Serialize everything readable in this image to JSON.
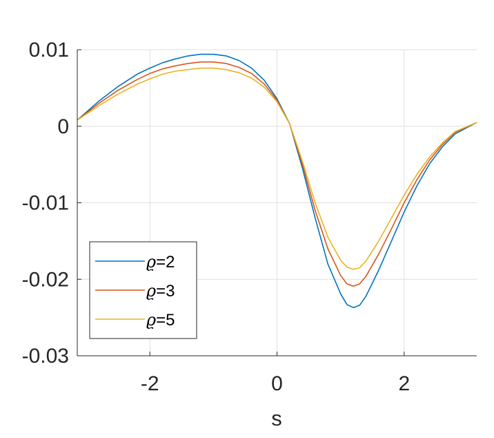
{
  "chart_data": {
    "type": "line",
    "title": "",
    "xlabel": "s",
    "ylabel": "",
    "xlim": [
      -3.1416,
      3.1416
    ],
    "ylim": [
      -0.03,
      0.01
    ],
    "xticks": [
      -2,
      0,
      2
    ],
    "xtick_labels": [
      "-2",
      "0",
      "2"
    ],
    "yticks": [
      -0.03,
      -0.02,
      -0.01,
      0,
      0.01
    ],
    "ytick_labels": [
      "-0.03",
      "-0.02",
      "-0.01",
      "0",
      "0.01"
    ],
    "grid": true,
    "legend_position": "bottom-left",
    "x": [
      -3.1416,
      -2.8,
      -2.5,
      -2.2,
      -2.0,
      -1.8,
      -1.6,
      -1.4,
      -1.2,
      -1.0,
      -0.8,
      -0.6,
      -0.4,
      -0.2,
      0.0,
      0.2,
      0.4,
      0.6,
      0.8,
      1.0,
      1.1,
      1.2,
      1.3,
      1.4,
      1.6,
      1.8,
      2.0,
      2.2,
      2.4,
      2.6,
      2.8,
      3.1416
    ],
    "series": [
      {
        "name": "ϱ=2",
        "color": "#0072BD",
        "values": [
          0.0008,
          0.0033,
          0.0052,
          0.0068,
          0.0076,
          0.0083,
          0.0088,
          0.0092,
          0.0094,
          0.0094,
          0.0092,
          0.0086,
          0.0076,
          0.006,
          0.0036,
          0.0003,
          -0.0055,
          -0.012,
          -0.018,
          -0.0219,
          -0.0233,
          -0.0237,
          -0.0234,
          -0.0222,
          -0.0188,
          -0.015,
          -0.0112,
          -0.0078,
          -0.0049,
          -0.0027,
          -0.001,
          0.0005
        ]
      },
      {
        "name": "ϱ=3",
        "color": "#D95319",
        "values": [
          0.0008,
          0.003,
          0.0047,
          0.0061,
          0.0069,
          0.0075,
          0.0079,
          0.0082,
          0.0084,
          0.0084,
          0.0082,
          0.0077,
          0.0069,
          0.0055,
          0.0034,
          0.0003,
          -0.005,
          -0.011,
          -0.016,
          -0.0195,
          -0.0206,
          -0.0209,
          -0.0206,
          -0.0196,
          -0.0167,
          -0.0134,
          -0.01,
          -0.007,
          -0.0044,
          -0.0024,
          -0.0008,
          0.0005
        ]
      },
      {
        "name": "ϱ=5",
        "color": "#EDB120",
        "values": [
          0.0008,
          0.0027,
          0.0042,
          0.0055,
          0.0062,
          0.0068,
          0.0072,
          0.0074,
          0.0076,
          0.0076,
          0.0074,
          0.007,
          0.0063,
          0.0051,
          0.0032,
          0.0003,
          -0.0046,
          -0.01,
          -0.0145,
          -0.0175,
          -0.0184,
          -0.0187,
          -0.0185,
          -0.0176,
          -0.015,
          -0.012,
          -0.009,
          -0.0063,
          -0.004,
          -0.0022,
          -0.0007,
          0.0005
        ]
      }
    ]
  },
  "colors": {
    "axis": "#262626",
    "grid": "#dfdfdf"
  }
}
